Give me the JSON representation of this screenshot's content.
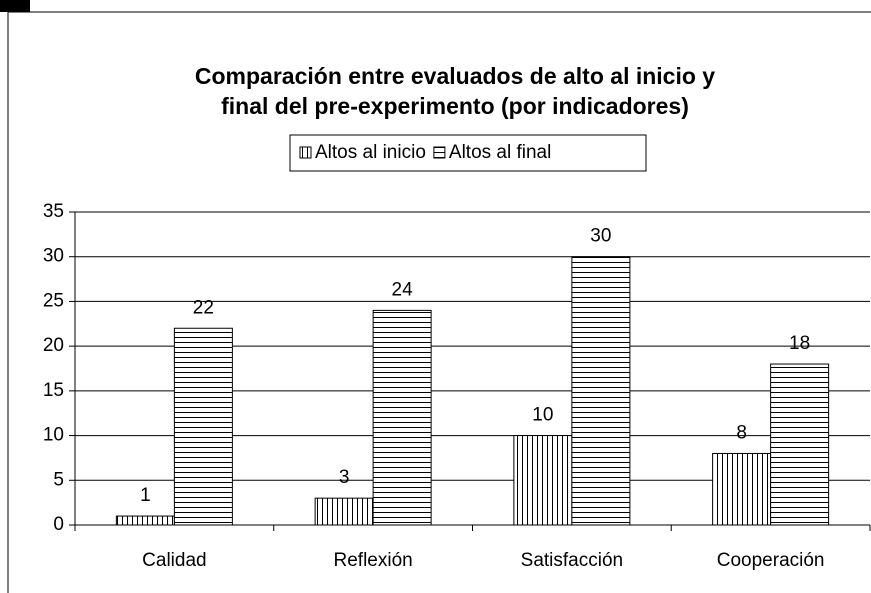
{
  "chart_data": {
    "type": "bar",
    "title": [
      "Comparación entre evaluados de alto al inicio y",
      "final del pre-experimento (por indicadores)"
    ],
    "categories": [
      "Calidad",
      "Reflexión",
      "Satisfacción",
      "Cooperación"
    ],
    "series": [
      {
        "name": "Altos al inicio",
        "color": "#000000",
        "pattern": "vertical",
        "values": [
          1,
          3,
          10,
          8
        ]
      },
      {
        "name": "Altos al final",
        "color": "#000000",
        "pattern": "horizontal",
        "values": [
          22,
          24,
          30,
          18
        ]
      }
    ],
    "ylim": [
      0,
      35
    ],
    "yticks": [
      0,
      5,
      10,
      15,
      20,
      25,
      30,
      35
    ],
    "grid": true,
    "legend": "top"
  }
}
